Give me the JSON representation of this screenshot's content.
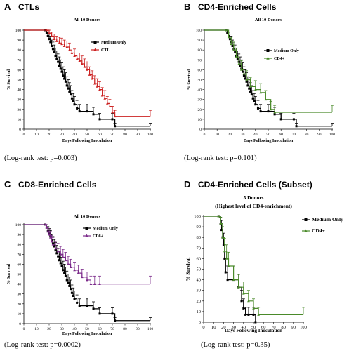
{
  "panels": [
    {
      "letter": "A",
      "heading": "CTLs",
      "stat": "(Log-rank test: p=0.003)",
      "chart_data": {
        "type": "line",
        "title": "All 10 Donors",
        "subtitle": "",
        "xlabel": "Days Following Inoculation",
        "ylabel": "% Survival",
        "xlim": [
          0,
          100
        ],
        "ylim": [
          0,
          100
        ],
        "xticks": [
          "0",
          "10",
          "20",
          "30",
          "40",
          "50",
          "60",
          "70",
          "80",
          "90",
          "100"
        ],
        "yticks": [
          "0",
          "10",
          "20",
          "30",
          "40",
          "50",
          "60",
          "70",
          "80",
          "90",
          "100"
        ],
        "grid": false,
        "legend_position": "top-right",
        "series": [
          {
            "name": "Medium Only",
            "color": "#000000",
            "marker": "square",
            "x": [
              0,
              17,
              18,
              19,
              20,
              21,
              22,
              23,
              24,
              25,
              26,
              27,
              28,
              29,
              30,
              31,
              32,
              33,
              34,
              35,
              36,
              37,
              38,
              39,
              40,
              42,
              44,
              50,
              55,
              60,
              70,
              72,
              100
            ],
            "y": [
              100,
              100,
              97,
              94,
              91,
              88,
              84,
              81,
              78,
              74,
              71,
              68,
              64,
              61,
              58,
              54,
              51,
              48,
              44,
              41,
              38,
              35,
              31,
              28,
              25,
              21,
              18,
              18,
              15,
              10,
              10,
              3,
              3
            ],
            "err": [
              0,
              0,
              3,
              4,
              5,
              6,
              6,
              7,
              7,
              8,
              8,
              8,
              9,
              9,
              9,
              9,
              9,
              9,
              9,
              9,
              9,
              9,
              8,
              8,
              8,
              8,
              7,
              7,
              7,
              6,
              6,
              3,
              3
            ]
          },
          {
            "name": "CTL",
            "color": "#cc2222",
            "marker": "triangle",
            "x": [
              0,
              18,
              20,
              22,
              24,
              26,
              28,
              30,
              32,
              34,
              36,
              38,
              40,
              42,
              44,
              46,
              48,
              50,
              52,
              54,
              56,
              58,
              60,
              62,
              64,
              66,
              68,
              70,
              72,
              100
            ],
            "y": [
              100,
              100,
              97,
              94,
              91,
              89,
              87,
              86,
              84,
              83,
              80,
              77,
              74,
              71,
              69,
              66,
              63,
              60,
              55,
              51,
              46,
              43,
              40,
              34,
              31,
              26,
              23,
              17,
              13,
              13
            ],
            "err": [
              0,
              0,
              3,
              4,
              5,
              5,
              6,
              6,
              6,
              6,
              7,
              7,
              7,
              8,
              8,
              8,
              8,
              8,
              8,
              8,
              8,
              8,
              8,
              8,
              8,
              7,
              7,
              6,
              6,
              6
            ]
          }
        ]
      }
    },
    {
      "letter": "B",
      "heading": "CD4-Enriched Cells",
      "stat": "(Log-rank test: p=0.101)",
      "chart_data": {
        "type": "line",
        "title": "All 10 Donors",
        "subtitle": "",
        "xlabel": "Days Following Inoculation",
        "ylabel": "% Survival",
        "xlim": [
          0,
          100
        ],
        "ylim": [
          0,
          100
        ],
        "xticks": [
          "0",
          "10",
          "20",
          "30",
          "40",
          "50",
          "60",
          "70",
          "80",
          "90",
          "100"
        ],
        "yticks": [
          "0",
          "10",
          "20",
          "30",
          "40",
          "50",
          "60",
          "70",
          "80",
          "90",
          "100"
        ],
        "grid": false,
        "legend_position": "top-right",
        "series": [
          {
            "name": "Medium Only",
            "color": "#000000",
            "marker": "square",
            "x": [
              0,
              17,
              18,
              19,
              20,
              21,
              22,
              23,
              24,
              25,
              26,
              27,
              28,
              29,
              30,
              31,
              32,
              33,
              34,
              35,
              36,
              37,
              38,
              39,
              40,
              42,
              44,
              50,
              55,
              60,
              70,
              72,
              100
            ],
            "y": [
              100,
              100,
              97,
              94,
              91,
              88,
              84,
              81,
              78,
              74,
              71,
              68,
              64,
              61,
              58,
              54,
              51,
              48,
              44,
              41,
              38,
              35,
              31,
              28,
              25,
              21,
              18,
              18,
              15,
              10,
              10,
              3,
              3
            ],
            "err": [
              0,
              0,
              3,
              4,
              5,
              6,
              6,
              7,
              7,
              8,
              8,
              8,
              9,
              9,
              9,
              9,
              9,
              9,
              9,
              9,
              9,
              9,
              8,
              8,
              8,
              8,
              7,
              7,
              7,
              6,
              6,
              3,
              3
            ]
          },
          {
            "name": "CD4+",
            "color": "#4a8a2a",
            "marker": "triangle",
            "x": [
              0,
              17,
              19,
              21,
              23,
              25,
              27,
              29,
              31,
              33,
              36,
              40,
              44,
              48,
              52,
              55,
              100
            ],
            "y": [
              100,
              100,
              93,
              86,
              80,
              73,
              66,
              60,
              56,
              50,
              43,
              40,
              37,
              30,
              20,
              17,
              17
            ],
            "err": [
              0,
              0,
              5,
              7,
              8,
              9,
              9,
              9,
              9,
              9,
              9,
              9,
              9,
              9,
              8,
              7,
              7
            ]
          }
        ]
      }
    },
    {
      "letter": "C",
      "heading": "CD8-Enriched Cells",
      "stat": "(Log-rank test: p=0.0002)",
      "chart_data": {
        "type": "line",
        "title": "All 10 Donors",
        "subtitle": "",
        "xlabel": "Days Following Inoculation",
        "ylabel": "% Survival",
        "xlim": [
          0,
          100
        ],
        "ylim": [
          0,
          100
        ],
        "xticks": [
          "0",
          "10",
          "20",
          "30",
          "40",
          "50",
          "60",
          "70",
          "80",
          "90",
          "100"
        ],
        "yticks": [
          "0",
          "10",
          "20",
          "30",
          "40",
          "50",
          "60",
          "70",
          "80",
          "90",
          "100"
        ],
        "grid": false,
        "legend_position": "top-right",
        "series": [
          {
            "name": "Medium Only",
            "color": "#000000",
            "marker": "square",
            "x": [
              0,
              17,
              18,
              19,
              20,
              21,
              22,
              23,
              24,
              25,
              26,
              27,
              28,
              29,
              30,
              31,
              32,
              33,
              34,
              35,
              36,
              37,
              38,
              39,
              40,
              42,
              44,
              50,
              55,
              60,
              70,
              72,
              100
            ],
            "y": [
              100,
              100,
              97,
              94,
              91,
              88,
              84,
              81,
              78,
              74,
              71,
              68,
              64,
              61,
              58,
              54,
              51,
              48,
              44,
              41,
              38,
              35,
              31,
              28,
              25,
              21,
              18,
              18,
              15,
              10,
              10,
              3,
              3
            ],
            "err": [
              0,
              0,
              3,
              4,
              5,
              6,
              6,
              7,
              7,
              8,
              8,
              8,
              9,
              9,
              9,
              9,
              9,
              9,
              9,
              9,
              9,
              9,
              8,
              8,
              8,
              8,
              7,
              7,
              7,
              6,
              6,
              3,
              3
            ]
          },
          {
            "name": "CD8+",
            "color": "#7b2a8a",
            "marker": "triangle",
            "x": [
              0,
              17,
              18,
              19,
              20,
              21,
              22,
              23,
              25,
              27,
              29,
              31,
              33,
              35,
              37,
              40,
              43,
              46,
              50,
              53,
              56,
              60,
              100
            ],
            "y": [
              100,
              100,
              97,
              93,
              90,
              87,
              83,
              80,
              76,
              73,
              70,
              67,
              64,
              60,
              57,
              54,
              51,
              47,
              44,
              40,
              40,
              40,
              40
            ],
            "err": [
              0,
              0,
              3,
              4,
              5,
              6,
              6,
              7,
              7,
              8,
              8,
              8,
              8,
              8,
              8,
              8,
              8,
              8,
              8,
              8,
              8,
              8,
              8
            ]
          }
        ]
      }
    },
    {
      "letter": "D",
      "heading": "CD4-Enriched Cells (Subset)",
      "stat": "(Log-rank test: p=0.35)",
      "chart_data": {
        "type": "line",
        "title": "5 Donors",
        "subtitle": "(Highest level of CD4-enrichment)",
        "xlabel": "Days Following Inoculation",
        "ylabel": "% Survival",
        "xlim": [
          0,
          100
        ],
        "ylim": [
          0,
          100
        ],
        "xticks": [
          "0",
          "10",
          "20",
          "30",
          "40",
          "50",
          "60",
          "70",
          "80",
          "90",
          "100"
        ],
        "yticks": [
          "0",
          "10",
          "20",
          "30",
          "40",
          "50",
          "60",
          "70",
          "80",
          "90",
          "100"
        ],
        "grid": false,
        "legend_position": "top-right",
        "series": [
          {
            "name": "Medium Only",
            "color": "#000000",
            "marker": "square",
            "x": [
              0,
              15,
              17,
              18,
              19,
              20,
              21,
              22,
              24,
              30,
              35,
              38,
              40,
              42,
              45,
              50,
              52
            ],
            "y": [
              100,
              100,
              93,
              87,
              80,
              73,
              60,
              47,
              40,
              40,
              33,
              20,
              13,
              7,
              7,
              7,
              0
            ],
            "err": [
              0,
              0,
              6,
              9,
              10,
              11,
              13,
              13,
              13,
              13,
              12,
              10,
              9,
              7,
              7,
              7,
              0
            ]
          },
          {
            "name": "CD4+",
            "color": "#4a8a2a",
            "marker": "triangle",
            "x": [
              0,
              15,
              17,
              19,
              21,
              23,
              25,
              30,
              35,
              40,
              45,
              50,
              55,
              100
            ],
            "y": [
              100,
              100,
              93,
              80,
              67,
              60,
              53,
              40,
              33,
              27,
              20,
              13,
              7,
              7
            ],
            "err": [
              0,
              0,
              6,
              10,
              12,
              13,
              13,
              13,
              12,
              11,
              10,
              9,
              7,
              7
            ]
          }
        ]
      }
    }
  ]
}
